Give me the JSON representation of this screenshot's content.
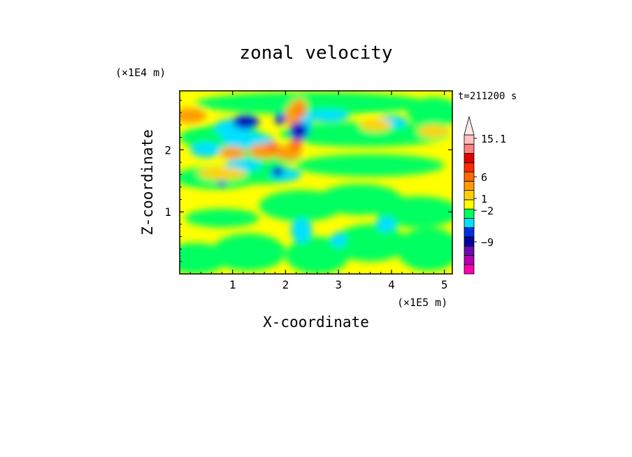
{
  "chart_data": {
    "type": "heatmap",
    "title": "zonal velocity",
    "xlabel": "X-coordinate",
    "ylabel": "Z-coordinate",
    "x_unit": "(×1E5 m)",
    "y_unit": "(×1E4 m)",
    "time_label": "t=211200 s",
    "xlim": [
      0,
      5.15
    ],
    "ylim": [
      0,
      2.95
    ],
    "x_ticks": [
      "1",
      "2",
      "3",
      "4",
      "5"
    ],
    "y_ticks": [
      "1",
      "2"
    ],
    "colorbar": {
      "labels": [
        "15.1",
        "6",
        "1",
        "−2",
        "−9"
      ],
      "extend": "max",
      "colors": [
        "#ff00b0",
        "#b000b0",
        "#6a0bb0",
        "#0000a0",
        "#0030e0",
        "#00e0ff",
        "#00ff60",
        "#ffff00",
        "#ffd000",
        "#ff9a00",
        "#ff6a00",
        "#ff2a00",
        "#e00000",
        "#ff8080",
        "#ffc0c0"
      ]
    },
    "field_description_levels": {
      "background": "green/yellow (≈ 0 to 1)",
      "positive_cores": "orange/red near x≈1.8–2.5, z≈2.0–2.6",
      "negative_cores": "blue/navy near x≈1.0–2.3, z≈1.7–2.5"
    }
  }
}
